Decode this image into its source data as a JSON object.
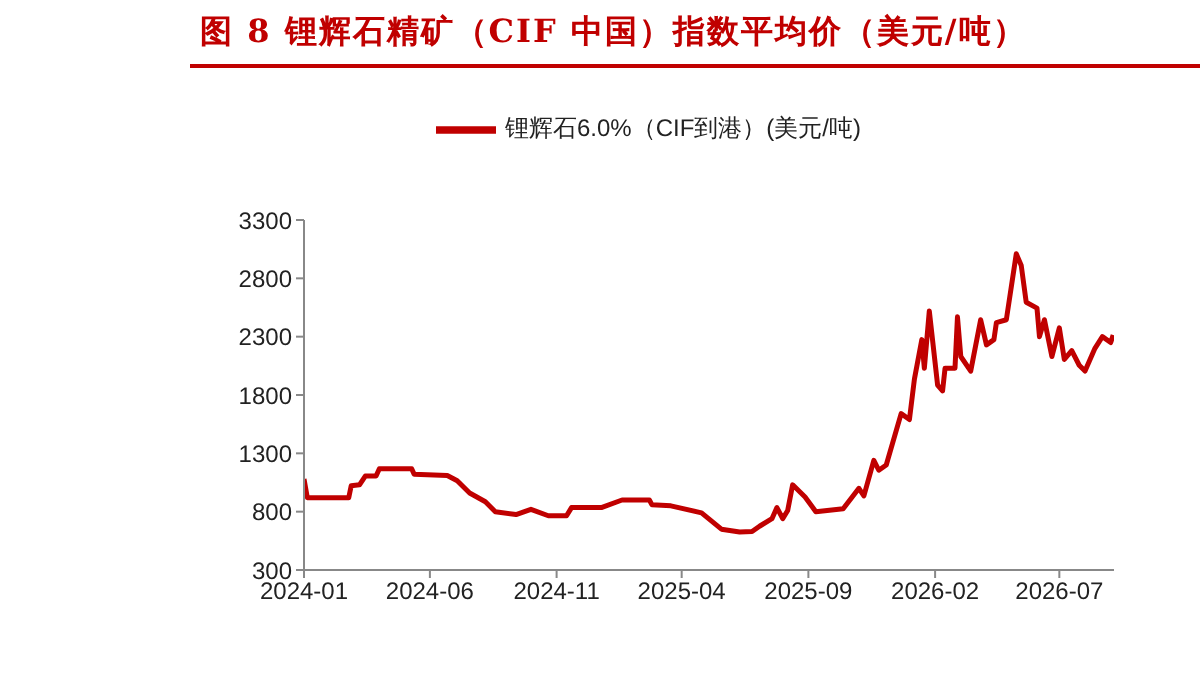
{
  "chart_data": {
    "type": "line",
    "title": "图 8 锂辉石精矿（CIF 中国）指数平均价（美元/吨）",
    "x": [
      "2024-01-01",
      "2024-01-05",
      "2024-02-24",
      "2024-02-27",
      "2024-03-08",
      "2024-03-15",
      "2024-03-28",
      "2024-04-01",
      "2024-05-10",
      "2024-05-13",
      "2024-06-22",
      "2024-07-04",
      "2024-07-19",
      "2024-08-07",
      "2024-08-19",
      "2024-09-13",
      "2024-10-01",
      "2024-10-22",
      "2024-11-13",
      "2024-11-19",
      "2024-12-25",
      "2025-01-19",
      "2025-02-21",
      "2025-02-24",
      "2025-03-19",
      "2025-04-25",
      "2025-05-19",
      "2025-06-10",
      "2025-06-25",
      "2025-07-04",
      "2025-07-19",
      "2025-07-25",
      "2025-08-01",
      "2025-08-07",
      "2025-08-13",
      "2025-08-28",
      "2025-09-10",
      "2025-10-13",
      "2025-11-01",
      "2025-11-07",
      "2025-11-19",
      "2025-11-25",
      "2025-12-04",
      "2025-12-22",
      "2026-01-01",
      "2026-01-07",
      "2026-01-16",
      "2026-01-19",
      "2026-01-25",
      "2026-02-04",
      "2026-02-10",
      "2026-02-13",
      "2026-02-25",
      "2026-02-28",
      "2026-03-04",
      "2026-03-16",
      "2026-03-28",
      "2026-04-04",
      "2026-04-13",
      "2026-04-16",
      "2026-04-28",
      "2026-05-10",
      "2026-05-16",
      "2026-05-22",
      "2026-06-04",
      "2026-06-07",
      "2026-06-13",
      "2026-06-22",
      "2026-07-01",
      "2026-07-07",
      "2026-07-16",
      "2026-07-25",
      "2026-08-01",
      "2026-08-13",
      "2026-08-22",
      "2026-09-01",
      "2026-09-04"
    ],
    "series": [
      {
        "name": "锂辉石6.0%（CIF到港）(美元/吨)",
        "color": "#c00000",
        "values": [
          1080,
          920,
          920,
          1022,
          1030,
          1105,
          1105,
          1168,
          1168,
          1120,
          1110,
          1065,
          960,
          885,
          800,
          775,
          820,
          765,
          765,
          835,
          835,
          900,
          900,
          860,
          850,
          790,
          650,
          625,
          630,
          675,
          740,
          835,
          740,
          810,
          1030,
          925,
          800,
          825,
          1000,
          935,
          1240,
          1155,
          1200,
          1640,
          1590,
          1935,
          2275,
          2030,
          2520,
          1885,
          1835,
          2030,
          2030,
          2470,
          2130,
          2005,
          2445,
          2230,
          2275,
          2420,
          2445,
          3010,
          2910,
          2595,
          2545,
          2300,
          2445,
          2130,
          2375,
          2105,
          2180,
          2055,
          2005,
          2200,
          2300,
          2250,
          2315
        ]
      }
    ],
    "xlim": [
      "2024-01-01",
      "2026-09-05"
    ],
    "xticks": [
      {
        "value": "2024-01-01",
        "label": "2024-01"
      },
      {
        "value": "2024-06-01",
        "label": "2024-06"
      },
      {
        "value": "2024-11-01",
        "label": "2024-11"
      },
      {
        "value": "2025-04-01",
        "label": "2025-04"
      },
      {
        "value": "2025-09-01",
        "label": "2025-09"
      },
      {
        "value": "2026-02-01",
        "label": "2026-02"
      },
      {
        "value": "2026-07-01",
        "label": "2026-07"
      }
    ],
    "ylim": [
      300,
      3300
    ],
    "yticks": [
      300,
      800,
      1300,
      1800,
      2300,
      2800,
      3300
    ],
    "grid": false,
    "legend": "top",
    "line_style": "solid"
  }
}
